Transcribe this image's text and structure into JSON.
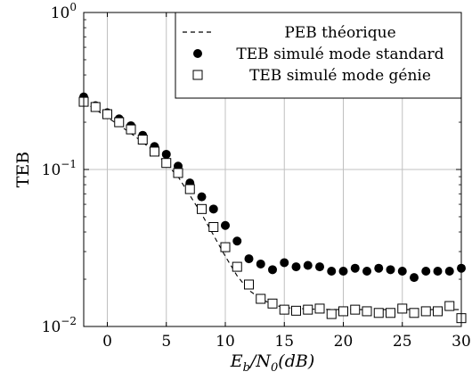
{
  "chart_data": {
    "type": "scatter",
    "xlabel": "Eb/N0(dB)",
    "ylabel": "TEB",
    "yscale": "log",
    "xlim": [
      -2,
      30
    ],
    "ylim": [
      0.01,
      1
    ],
    "grid": true,
    "legend_position": "top-right",
    "x_ticks": [
      0,
      5,
      10,
      15,
      20,
      25,
      30
    ],
    "y_ticks": [
      1,
      0.1,
      0.01
    ],
    "y_tick_labels": [
      {
        "base": "10",
        "exp": "0"
      },
      {
        "base": "10",
        "exp": "−1"
      },
      {
        "base": "10",
        "exp": "−2"
      }
    ],
    "series": [
      {
        "name": "PEB théorique",
        "style": "dashed-line",
        "x": [
          -2,
          0,
          2,
          4,
          6,
          8,
          10,
          11,
          12,
          13,
          14,
          15,
          17,
          20,
          25,
          30
        ],
        "y": [
          0.27,
          0.215,
          0.17,
          0.13,
          0.09,
          0.052,
          0.028,
          0.021,
          0.017,
          0.015,
          0.0138,
          0.0132,
          0.0129,
          0.0128,
          0.0128,
          0.0128
        ]
      },
      {
        "name": "TEB simulé mode standard",
        "style": "filled-circle",
        "x": [
          -2,
          -1,
          0,
          1,
          2,
          3,
          4,
          5,
          6,
          7,
          8,
          9,
          10,
          11,
          12,
          13,
          14,
          15,
          16,
          17,
          18,
          19,
          20,
          21,
          22,
          23,
          24,
          25,
          26,
          27,
          28,
          29,
          30
        ],
        "y": [
          0.29,
          0.255,
          0.23,
          0.21,
          0.19,
          0.165,
          0.14,
          0.125,
          0.105,
          0.082,
          0.067,
          0.056,
          0.044,
          0.035,
          0.027,
          0.025,
          0.023,
          0.0255,
          0.024,
          0.0245,
          0.024,
          0.0225,
          0.0225,
          0.0235,
          0.0225,
          0.0235,
          0.023,
          0.0225,
          0.0205,
          0.0225,
          0.0225,
          0.0225,
          0.0235
        ]
      },
      {
        "name": "TEB simulé mode génie",
        "style": "open-square",
        "x": [
          -2,
          -1,
          0,
          1,
          2,
          3,
          4,
          5,
          6,
          7,
          8,
          9,
          10,
          11,
          12,
          13,
          14,
          15,
          16,
          17,
          18,
          19,
          20,
          21,
          22,
          23,
          24,
          25,
          26,
          27,
          28,
          29,
          30
        ],
        "y": [
          0.27,
          0.25,
          0.225,
          0.2,
          0.18,
          0.155,
          0.13,
          0.11,
          0.095,
          0.075,
          0.056,
          0.043,
          0.032,
          0.024,
          0.0185,
          0.015,
          0.014,
          0.0128,
          0.0126,
          0.0128,
          0.013,
          0.012,
          0.0125,
          0.0128,
          0.0125,
          0.0122,
          0.0122,
          0.013,
          0.0122,
          0.0125,
          0.0125,
          0.0135,
          0.0113
        ]
      }
    ]
  }
}
